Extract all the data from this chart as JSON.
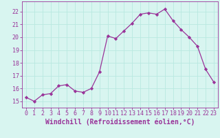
{
  "x": [
    0,
    1,
    2,
    3,
    4,
    5,
    6,
    7,
    8,
    9,
    10,
    11,
    12,
    13,
    14,
    15,
    16,
    17,
    18,
    19,
    20,
    21,
    22,
    23
  ],
  "y": [
    15.3,
    15.0,
    15.5,
    15.6,
    16.2,
    16.3,
    15.8,
    15.7,
    16.0,
    17.3,
    20.1,
    19.9,
    20.5,
    21.1,
    21.8,
    21.9,
    21.8,
    22.2,
    21.3,
    20.6,
    20.0,
    19.3,
    17.5,
    16.5
  ],
  "line_color": "#993399",
  "marker_color": "#993399",
  "bg_color": "#d8f5f0",
  "grid_color": "#b8e8e0",
  "xlabel": "Windchill (Refroidissement éolien,°C)",
  "xlabel_color": "#993399",
  "yticks": [
    15,
    16,
    17,
    18,
    19,
    20,
    21,
    22
  ],
  "xticks": [
    0,
    1,
    2,
    3,
    4,
    5,
    6,
    7,
    8,
    9,
    10,
    11,
    12,
    13,
    14,
    15,
    16,
    17,
    18,
    19,
    20,
    21,
    22,
    23
  ],
  "ylim": [
    14.5,
    22.8
  ],
  "xlim": [
    -0.5,
    23.5
  ],
  "tick_color": "#993399",
  "tick_fontsize": 6.0,
  "xlabel_fontsize": 7.0,
  "spine_color": "#993399",
  "linewidth": 0.9,
  "markersize": 2.2
}
